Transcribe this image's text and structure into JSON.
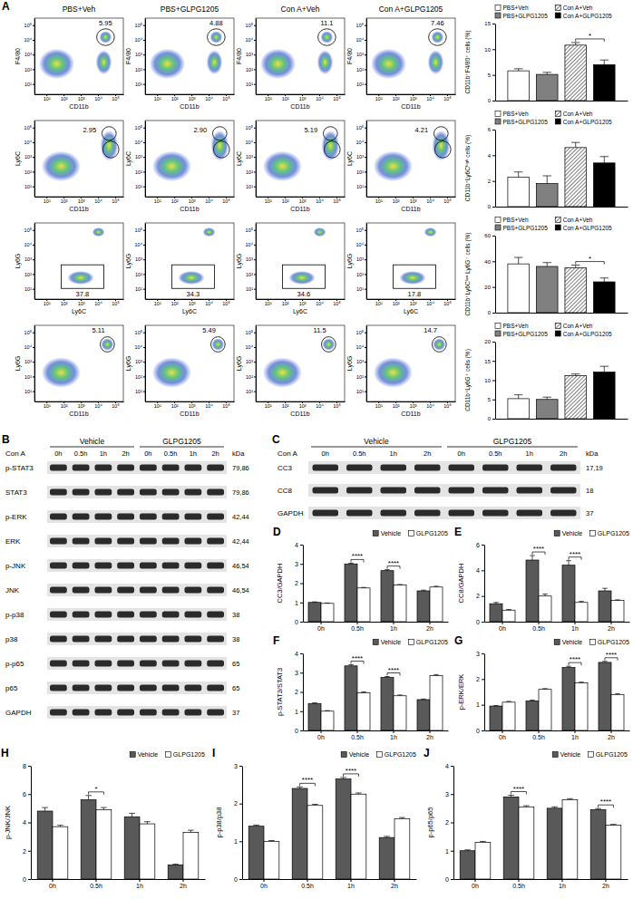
{
  "panel_letters": [
    "A",
    "B",
    "C",
    "D",
    "E",
    "F",
    "G",
    "H",
    "I",
    "J"
  ],
  "flow": {
    "groups": [
      "PBS+Veh",
      "PBS+GLPG1205",
      "Con A+Veh",
      "Con A+GLPG1205"
    ],
    "log": true,
    "xlim": [
      2,
      300000
    ],
    "ylim": [
      2,
      300000
    ],
    "xticks": [
      {
        "value": 10,
        "label": "10¹"
      },
      {
        "value": 100,
        "label": "10²"
      },
      {
        "value": 1000,
        "label": "10³"
      },
      {
        "value": 10000,
        "label": "10⁴"
      },
      {
        "value": 100000,
        "label": "10⁵"
      }
    ],
    "yticks": [
      {
        "value": 10,
        "label": "10¹"
      },
      {
        "value": 100,
        "label": "10²"
      },
      {
        "value": 1000,
        "label": "10³"
      },
      {
        "value": 10000,
        "label": "10⁴"
      },
      {
        "value": 100000,
        "label": "10⁵"
      }
    ],
    "rows": [
      {
        "x_label": "CD11b",
        "y_label": "F4/80",
        "values": [
          5.95,
          4.88,
          11.1,
          7.46
        ]
      },
      {
        "x_label": "CD11b",
        "y_label": "Ly6C",
        "values": [
          2.95,
          2.9,
          5.19,
          4.21
        ],
        "value_labels": [
          "2.95",
          "2.90",
          "5.19",
          "4.21"
        ]
      },
      {
        "x_label": "Ly6C",
        "y_label": "Ly6G",
        "values": [
          37.8,
          34.3,
          34.6,
          17.8
        ]
      },
      {
        "x_label": "CD11b",
        "y_label": "Ly6G",
        "values": [
          5.11,
          5.49,
          11.5,
          14.7
        ]
      }
    ]
  },
  "blots": [
    {
      "groups": [
        "Vehicle",
        "GLPG1205"
      ],
      "treatment": "Con A",
      "times": [
        "0h",
        "0.5h",
        "1h",
        "2h"
      ],
      "unit": "kDa",
      "rows": [
        {
          "label": "p-STAT3",
          "kda": "79,86"
        },
        {
          "label": "STAT3",
          "kda": "79,86"
        },
        {
          "label": "p-ERK",
          "kda": "42,44"
        },
        {
          "label": "ERK",
          "kda": "42,44"
        },
        {
          "label": "p-JNK",
          "kda": "46,54"
        },
        {
          "label": "JNK",
          "kda": "46,54"
        },
        {
          "label": "p-p38",
          "kda": "38"
        },
        {
          "label": "p38",
          "kda": "38"
        },
        {
          "label": "p-p65",
          "kda": "65"
        },
        {
          "label": "p65",
          "kda": "65"
        },
        {
          "label": "GAPDH",
          "kda": "37"
        }
      ]
    },
    {
      "groups": [
        "Vehicle",
        "GLPG1205"
      ],
      "treatment": "Con A",
      "times": [
        "0h",
        "0.5h",
        "1h",
        "2h"
      ],
      "unit": "kDa",
      "rows": [
        {
          "label": "CC3",
          "kda": "17,19"
        },
        {
          "label": "CC8",
          "kda": "18"
        },
        {
          "label": "GAPDH",
          "kda": "37"
        }
      ]
    }
  ],
  "chart_data": [
    {
      "type": "bar",
      "y_label": "CD11b⁺F4/80⁺ cells (%)",
      "ylim": [
        0,
        15
      ],
      "yticks": [
        0,
        5,
        10,
        15
      ],
      "legend": "top",
      "tick_labels": "y",
      "series": [
        {
          "name": "PBS+Veh",
          "color": "#ffffff",
          "values": [
            5.8
          ],
          "errors": [
            0.4
          ]
        },
        {
          "name": "PBS+GLPG1205",
          "color": "#808080",
          "values": [
            5.1
          ],
          "errors": [
            0.4
          ]
        },
        {
          "name": "Con A+Veh",
          "color": "#000000",
          "marker": "hatch",
          "values": [
            10.8
          ],
          "errors": [
            0.5
          ]
        },
        {
          "name": "Con A+GLPG1205",
          "color": "#000000",
          "values": [
            7.0
          ],
          "errors": [
            0.9
          ]
        }
      ],
      "annotations": [
        {
          "text": "*",
          "from": "Con A+Veh",
          "to": "Con A+GLPG1205"
        }
      ]
    },
    {
      "type": "bar",
      "y_label": "CD11b⁺Ly6Cʰⁱᵍʰ cells (%)",
      "ylim": [
        0,
        6
      ],
      "yticks": [
        0,
        2,
        4,
        6
      ],
      "legend": "top",
      "tick_labels": "y",
      "series": [
        {
          "name": "PBS+Veh",
          "color": "#ffffff",
          "values": [
            2.3
          ],
          "errors": [
            0.4
          ]
        },
        {
          "name": "PBS+GLPG1205",
          "color": "#808080",
          "values": [
            1.8
          ],
          "errors": [
            0.6
          ]
        },
        {
          "name": "Con A+Veh",
          "color": "#000000",
          "marker": "hatch",
          "values": [
            4.6
          ],
          "errors": [
            0.4
          ]
        },
        {
          "name": "Con A+GLPG1205",
          "color": "#000000",
          "values": [
            3.4
          ],
          "errors": [
            0.5
          ]
        }
      ]
    },
    {
      "type": "bar",
      "y_label": "CD11b⁺Ly6Cˡᵒʷ Ly6G⁻ cells (%)",
      "ylim": [
        0,
        60
      ],
      "yticks": [
        0,
        20,
        40,
        60
      ],
      "legend": "top",
      "tick_labels": "y",
      "series": [
        {
          "name": "PBS+Veh",
          "color": "#ffffff",
          "values": [
            38
          ],
          "errors": [
            5
          ]
        },
        {
          "name": "PBS+GLPG1205",
          "color": "#808080",
          "values": [
            36
          ],
          "errors": [
            3
          ]
        },
        {
          "name": "Con A+Veh",
          "color": "#000000",
          "marker": "hatch",
          "values": [
            35
          ],
          "errors": [
            2
          ]
        },
        {
          "name": "Con A+GLPG1205",
          "color": "#000000",
          "values": [
            24
          ],
          "errors": [
            3
          ]
        }
      ],
      "annotations": [
        {
          "text": "*",
          "from": "Con A+Veh",
          "to": "Con A+GLPG1205"
        }
      ]
    },
    {
      "type": "bar",
      "y_label": "CD11b⁺Ly6G⁺ cells (%)",
      "ylim": [
        0,
        20
      ],
      "yticks": [
        0,
        5,
        10,
        15,
        20
      ],
      "legend": "top",
      "tick_labels": "y",
      "series": [
        {
          "name": "PBS+Veh",
          "color": "#ffffff",
          "values": [
            5.2
          ],
          "errors": [
            1.0
          ]
        },
        {
          "name": "PBS+GLPG1205",
          "color": "#808080",
          "values": [
            5.0
          ],
          "errors": [
            0.6
          ]
        },
        {
          "name": "Con A+Veh",
          "color": "#000000",
          "marker": "hatch",
          "values": [
            11.2
          ],
          "errors": [
            0.4
          ]
        },
        {
          "name": "Con A+GLPG1205",
          "color": "#000000",
          "values": [
            12.1
          ],
          "errors": [
            1.5
          ]
        }
      ]
    },
    {
      "type": "bar",
      "y_label": "CC3/GAPDH",
      "categories": [
        "0h",
        "0.5h",
        "1h",
        "2h"
      ],
      "ylim": [
        0,
        4
      ],
      "yticks": [
        0,
        1,
        2,
        3,
        4
      ],
      "legend": "top",
      "series": [
        {
          "name": "Vehicle",
          "color": "#595959",
          "values": [
            1.0,
            3.0,
            2.65,
            1.6
          ],
          "errors": [
            0.03,
            0.04,
            0.05,
            0.04
          ]
        },
        {
          "name": "GLPG1205",
          "color": "#ffffff",
          "values": [
            0.95,
            1.75,
            1.9,
            1.8
          ],
          "errors": [
            0.02,
            0.03,
            0.03,
            0.04
          ]
        }
      ],
      "annotations": [
        {
          "text": "****",
          "category": "0.5h"
        },
        {
          "text": "****",
          "category": "1h"
        }
      ]
    },
    {
      "type": "bar",
      "y_label": "CC8/GAPDH",
      "categories": [
        "0h",
        "0.5h",
        "1h",
        "2h"
      ],
      "ylim": [
        0,
        6
      ],
      "yticks": [
        0,
        2,
        4,
        6
      ],
      "legend": "top",
      "series": [
        {
          "name": "Vehicle",
          "color": "#595959",
          "values": [
            1.4,
            4.8,
            4.4,
            2.4
          ],
          "errors": [
            0.1,
            0.35,
            0.35,
            0.2
          ]
        },
        {
          "name": "GLPG1205",
          "color": "#ffffff",
          "values": [
            0.9,
            2.0,
            1.5,
            1.65
          ],
          "errors": [
            0.05,
            0.15,
            0.08,
            0.05
          ]
        }
      ],
      "annotations": [
        {
          "text": "****",
          "category": "0.5h"
        },
        {
          "text": "****",
          "category": "1h"
        }
      ]
    },
    {
      "type": "bar",
      "y_label": "p-STAT3/STAT3",
      "categories": [
        "0h",
        "0.5h",
        "1h",
        "2h"
      ],
      "ylim": [
        0,
        4
      ],
      "yticks": [
        0,
        1,
        2,
        3,
        4
      ],
      "legend": "top",
      "series": [
        {
          "name": "Vehicle",
          "color": "#595959",
          "values": [
            1.4,
            3.35,
            2.75,
            1.6
          ],
          "errors": [
            0.03,
            0.06,
            0.05,
            0.03
          ]
        },
        {
          "name": "GLPG1205",
          "color": "#ffffff",
          "values": [
            1.0,
            1.95,
            1.8,
            2.85
          ],
          "errors": [
            0.03,
            0.05,
            0.04,
            0.05
          ]
        }
      ],
      "annotations": [
        {
          "text": "****",
          "category": "0.5h"
        },
        {
          "text": "****",
          "category": "1h"
        }
      ]
    },
    {
      "type": "bar",
      "y_label": "p-ERK/ERK",
      "categories": [
        "0h",
        "0.5h",
        "1h",
        "2h"
      ],
      "ylim": [
        0,
        3
      ],
      "yticks": [
        0,
        1,
        2,
        3
      ],
      "legend": "top",
      "series": [
        {
          "name": "Vehicle",
          "color": "#595959",
          "values": [
            0.95,
            1.15,
            2.45,
            2.65
          ],
          "errors": [
            0.02,
            0.03,
            0.05,
            0.04
          ]
        },
        {
          "name": "GLPG1205",
          "color": "#ffffff",
          "values": [
            1.1,
            1.6,
            1.85,
            1.4
          ],
          "errors": [
            0.03,
            0.03,
            0.03,
            0.03
          ]
        }
      ],
      "annotations": [
        {
          "text": "****",
          "category": "1h"
        },
        {
          "text": "****",
          "category": "2h"
        }
      ]
    },
    {
      "type": "bar",
      "y_label": "p-JNK/JNK",
      "categories": [
        "0h",
        "0.5h",
        "1h",
        "2h"
      ],
      "ylim": [
        0,
        8
      ],
      "yticks": [
        0,
        2,
        4,
        6,
        8
      ],
      "legend": "top",
      "series": [
        {
          "name": "Vehicle",
          "color": "#595959",
          "values": [
            4.8,
            5.6,
            4.4,
            1.0
          ],
          "errors": [
            0.25,
            0.3,
            0.25,
            0.05
          ]
        },
        {
          "name": "GLPG1205",
          "color": "#ffffff",
          "values": [
            3.7,
            4.9,
            3.9,
            3.3
          ],
          "errors": [
            0.1,
            0.15,
            0.15,
            0.15
          ]
        }
      ],
      "annotations": [
        {
          "text": "*",
          "category": "0.5h"
        }
      ]
    },
    {
      "type": "bar",
      "y_label": "p-p38/p38",
      "categories": [
        "0h",
        "0.5h",
        "1h",
        "2h"
      ],
      "ylim": [
        0,
        3
      ],
      "yticks": [
        0,
        1,
        2,
        3
      ],
      "legend": "top",
      "series": [
        {
          "name": "Vehicle",
          "color": "#595959",
          "values": [
            1.4,
            2.4,
            2.65,
            1.1
          ],
          "errors": [
            0.03,
            0.04,
            0.04,
            0.03
          ]
        },
        {
          "name": "GLPG1205",
          "color": "#ffffff",
          "values": [
            1.0,
            1.95,
            2.25,
            1.6
          ],
          "errors": [
            0.02,
            0.03,
            0.03,
            0.03
          ]
        }
      ],
      "annotations": [
        {
          "text": "****",
          "category": "0.5h"
        },
        {
          "text": "****",
          "category": "1h"
        }
      ]
    },
    {
      "type": "bar",
      "y_label": "p-p65/p65",
      "categories": [
        "0h",
        "0.5h",
        "1h",
        "2h"
      ],
      "ylim": [
        0,
        4
      ],
      "yticks": [
        0,
        1,
        2,
        3,
        4
      ],
      "legend": "top",
      "series": [
        {
          "name": "Vehicle",
          "color": "#595959",
          "values": [
            1.0,
            2.9,
            2.5,
            2.45
          ],
          "errors": [
            0.03,
            0.06,
            0.05,
            0.04
          ]
        },
        {
          "name": "GLPG1205",
          "color": "#ffffff",
          "values": [
            1.3,
            2.55,
            2.8,
            1.9
          ],
          "errors": [
            0.03,
            0.04,
            0.04,
            0.03
          ]
        }
      ],
      "annotations": [
        {
          "text": "****",
          "category": "0.5h"
        },
        {
          "text": "****",
          "category": "2h"
        }
      ]
    }
  ]
}
